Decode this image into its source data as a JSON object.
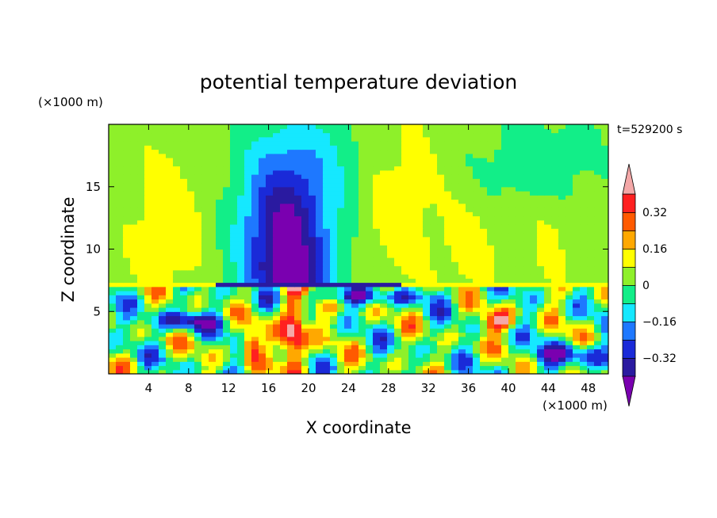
{
  "chart_data": {
    "type": "heatmap",
    "title": "potential temperature deviation",
    "xlabel": "X coordinate",
    "ylabel": "Z coordinate",
    "x_unit": "(×1000 m)",
    "y_unit": "(×1000 m)",
    "time_label": "t=529200 s",
    "xlim": [
      0,
      50
    ],
    "ylim": [
      0,
      20
    ],
    "x_ticks": [
      4,
      8,
      12,
      16,
      20,
      24,
      28,
      32,
      36,
      40,
      44,
      48
    ],
    "y_ticks": [
      5,
      10,
      15
    ],
    "colorbar": {
      "levels": [
        -0.4,
        -0.32,
        -0.24,
        -0.16,
        -0.08,
        0,
        0.08,
        0.16,
        0.24,
        0.32,
        0.4
      ],
      "tick_labels": [
        "−0.32",
        "−0.16",
        "0",
        "0.16",
        "0.32"
      ],
      "tick_values": [
        -0.32,
        -0.16,
        0,
        0.16,
        0.32
      ],
      "colors": [
        "#7a00b0",
        "#2a1aa0",
        "#1a2ad8",
        "#1e78ff",
        "#15e8ff",
        "#12ee88",
        "#8ef02a",
        "#ffff00",
        "#ffa800",
        "#ff5a00",
        "#ff2020",
        "#f4a8a8"
      ],
      "extend": "both"
    }
  }
}
